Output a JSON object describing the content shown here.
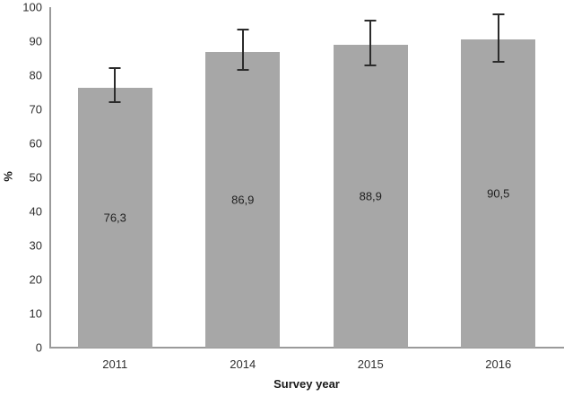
{
  "chart_data": {
    "type": "bar",
    "title": "",
    "xlabel": "Survey year",
    "ylabel": "%",
    "categories": [
      "2011",
      "2014",
      "2015",
      "2016"
    ],
    "values": [
      76.3,
      86.9,
      88.9,
      90.5
    ],
    "value_labels": [
      "76,3",
      "86,9",
      "88,9",
      "90,5"
    ],
    "error_low": [
      72,
      81.5,
      83,
      84
    ],
    "error_high": [
      82,
      93.5,
      96,
      98
    ],
    "ylim": [
      0,
      100
    ],
    "ytick_step": 10,
    "ytick_labels": [
      "0",
      "10",
      "20",
      "30",
      "40",
      "50",
      "60",
      "70",
      "80",
      "90",
      "100"
    ],
    "grid": false,
    "legend": null,
    "bar_color": "#a7a7a7",
    "error_bar_color": "#2b2b2b",
    "axis_color": "#9a9a9a",
    "text_color": "#303030"
  }
}
